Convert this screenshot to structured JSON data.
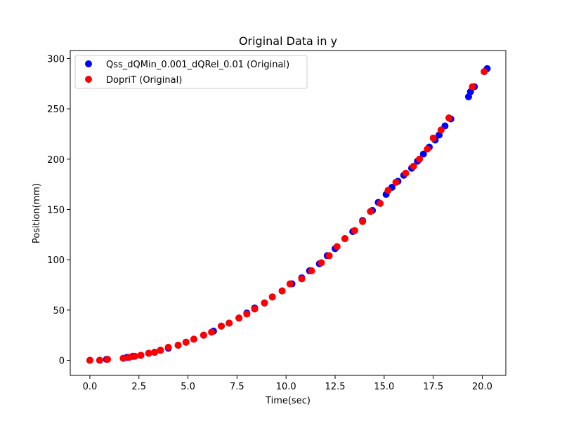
{
  "chart_data": {
    "type": "scatter",
    "title": "Original Data in y",
    "xlabel": "Time(sec)",
    "ylabel": "Position(mm)",
    "xlim": [
      -1.0,
      21.2
    ],
    "ylim": [
      -15,
      308
    ],
    "xticks": [
      0.0,
      2.5,
      5.0,
      7.5,
      10.0,
      12.5,
      15.0,
      17.5,
      20.0
    ],
    "xtick_labels": [
      "0.0",
      "2.5",
      "5.0",
      "7.5",
      "10.0",
      "12.5",
      "15.0",
      "17.5",
      "20.0"
    ],
    "yticks": [
      0,
      50,
      100,
      150,
      200,
      250,
      300
    ],
    "ytick_labels": [
      "0",
      "50",
      "100",
      "150",
      "200",
      "250",
      "300"
    ],
    "grid": false,
    "legend_position": "top-left",
    "series": [
      {
        "name": "Qss_dQMin_0.001_dQRel_0.01 (Original)",
        "color": "#0000ff",
        "x": [
          0.0,
          0.5,
          0.85,
          1.7,
          1.9,
          2.2,
          2.6,
          3.0,
          3.3,
          3.6,
          4.0,
          4.5,
          4.9,
          5.3,
          5.8,
          6.3,
          6.7,
          7.1,
          7.6,
          8.0,
          8.4,
          8.9,
          9.3,
          9.8,
          10.3,
          10.8,
          11.2,
          11.7,
          12.1,
          12.5,
          13.0,
          13.4,
          13.9,
          14.4,
          14.7,
          15.1,
          15.4,
          15.7,
          16.0,
          16.4,
          16.7,
          17.0,
          17.3,
          17.6,
          17.8,
          18.1,
          18.4,
          19.3,
          19.4,
          19.6,
          20.1,
          20.25
        ],
        "y": [
          0,
          0,
          1,
          2,
          3,
          4,
          5,
          7,
          8,
          10,
          12,
          15,
          18,
          21,
          25,
          29,
          34,
          37,
          42,
          47,
          52,
          57,
          63,
          69,
          76,
          82,
          89,
          96,
          104,
          111,
          121,
          128,
          139,
          149,
          157,
          165,
          172,
          178,
          184,
          191,
          198,
          205,
          212,
          219,
          224,
          233,
          240,
          262,
          267,
          272,
          287,
          290
        ]
      },
      {
        "name": "DopriT (Original)",
        "color": "#ff0000",
        "x": [
          0.0,
          0.5,
          0.9,
          1.7,
          2.0,
          2.3,
          2.6,
          3.0,
          3.3,
          3.6,
          4.0,
          4.5,
          4.9,
          5.3,
          5.8,
          6.2,
          6.7,
          7.1,
          7.6,
          8.0,
          8.4,
          8.9,
          9.3,
          9.8,
          10.2,
          10.8,
          11.3,
          11.8,
          12.2,
          12.6,
          13.0,
          13.5,
          13.9,
          14.3,
          14.8,
          15.2,
          15.6,
          16.1,
          16.5,
          16.8,
          17.2,
          17.5,
          17.9,
          18.3,
          19.5,
          20.1
        ],
        "y": [
          0,
          0,
          1,
          2,
          3,
          4,
          5,
          7,
          8,
          10,
          13,
          15,
          18,
          21,
          25,
          28,
          34,
          37,
          42,
          46,
          51,
          57,
          63,
          69,
          76,
          81,
          89,
          97,
          104,
          113,
          121,
          129,
          138,
          148,
          156,
          169,
          177,
          186,
          193,
          200,
          210,
          221,
          229,
          241,
          272,
          287
        ]
      }
    ]
  }
}
